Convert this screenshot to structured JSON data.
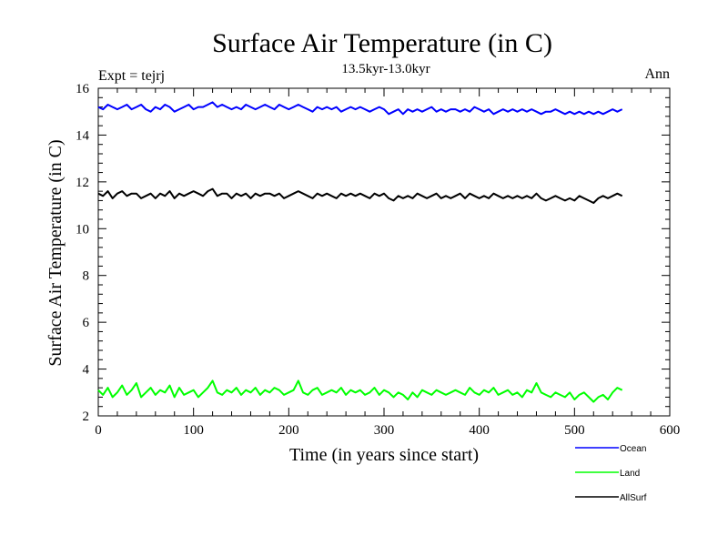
{
  "chart_data": {
    "type": "line",
    "title": "Surface Air Temperature (in C)",
    "subtitle": "13.5kyr-13.0kyr",
    "annotation_left": "Expt = tejrj",
    "annotation_right": "Ann",
    "xlabel": "Time (in years since start)",
    "ylabel": "Surface Air Temperature (in C)",
    "xlim": [
      0,
      600
    ],
    "ylim": [
      2,
      16
    ],
    "xticks": [
      0,
      100,
      200,
      300,
      400,
      500,
      600
    ],
    "yticks": [
      2,
      4,
      6,
      8,
      10,
      12,
      14,
      16
    ],
    "x_start": 0,
    "x_step": 5,
    "grid": false,
    "legend_position": "bottom-right",
    "series": [
      {
        "name": "Ocean",
        "color": "#0000ff",
        "values": [
          15.2,
          15.1,
          15.3,
          15.2,
          15.1,
          15.2,
          15.3,
          15.1,
          15.2,
          15.3,
          15.1,
          15.0,
          15.2,
          15.1,
          15.3,
          15.2,
          15.0,
          15.1,
          15.2,
          15.3,
          15.1,
          15.2,
          15.2,
          15.3,
          15.4,
          15.2,
          15.3,
          15.2,
          15.1,
          15.2,
          15.1,
          15.3,
          15.2,
          15.1,
          15.2,
          15.3,
          15.2,
          15.1,
          15.3,
          15.2,
          15.1,
          15.2,
          15.3,
          15.2,
          15.1,
          15.0,
          15.2,
          15.1,
          15.2,
          15.1,
          15.2,
          15.0,
          15.1,
          15.2,
          15.1,
          15.2,
          15.1,
          15.0,
          15.1,
          15.2,
          15.1,
          14.9,
          15.0,
          15.1,
          14.9,
          15.1,
          15.0,
          15.1,
          15.0,
          15.1,
          15.2,
          15.0,
          15.1,
          15.0,
          15.1,
          15.1,
          15.0,
          15.1,
          15.0,
          15.2,
          15.1,
          15.0,
          15.1,
          14.9,
          15.0,
          15.1,
          15.0,
          15.1,
          15.0,
          15.1,
          15.0,
          15.1,
          15.0,
          14.9,
          15.0,
          15.0,
          15.1,
          15.0,
          14.9,
          15.0,
          14.9,
          15.0,
          14.9,
          15.0,
          14.9,
          15.0,
          14.9,
          15.0,
          15.1,
          15.0,
          15.1
        ]
      },
      {
        "name": "Land",
        "color": "#00ff00",
        "values": [
          3.1,
          2.9,
          3.2,
          2.8,
          3.0,
          3.3,
          2.9,
          3.1,
          3.4,
          2.8,
          3.0,
          3.2,
          2.9,
          3.1,
          3.0,
          3.3,
          2.8,
          3.2,
          2.9,
          3.0,
          3.1,
          2.8,
          3.0,
          3.2,
          3.5,
          3.0,
          2.9,
          3.1,
          3.0,
          3.2,
          2.9,
          3.1,
          3.0,
          3.2,
          2.9,
          3.1,
          3.0,
          3.2,
          3.1,
          2.9,
          3.0,
          3.1,
          3.5,
          3.0,
          2.9,
          3.1,
          3.2,
          2.9,
          3.0,
          3.1,
          3.0,
          3.2,
          2.9,
          3.1,
          3.0,
          3.1,
          2.9,
          3.0,
          3.2,
          2.9,
          3.1,
          3.0,
          2.8,
          3.0,
          2.9,
          2.7,
          3.0,
          2.8,
          3.1,
          3.0,
          2.9,
          3.1,
          3.0,
          2.9,
          3.0,
          3.1,
          3.0,
          2.9,
          3.2,
          3.0,
          2.9,
          3.1,
          3.0,
          3.2,
          2.9,
          3.0,
          3.1,
          2.9,
          3.0,
          2.8,
          3.1,
          3.0,
          3.4,
          3.0,
          2.9,
          2.8,
          3.0,
          2.9,
          2.8,
          3.0,
          2.7,
          2.9,
          3.0,
          2.8,
          2.6,
          2.8,
          2.9,
          2.7,
          3.0,
          3.2,
          3.1
        ]
      },
      {
        "name": "AllSurf",
        "color": "#000000",
        "values": [
          11.5,
          11.4,
          11.6,
          11.3,
          11.5,
          11.6,
          11.4,
          11.5,
          11.5,
          11.3,
          11.4,
          11.5,
          11.3,
          11.5,
          11.4,
          11.6,
          11.3,
          11.5,
          11.4,
          11.5,
          11.6,
          11.5,
          11.4,
          11.6,
          11.7,
          11.4,
          11.5,
          11.5,
          11.3,
          11.5,
          11.4,
          11.5,
          11.3,
          11.5,
          11.4,
          11.5,
          11.5,
          11.4,
          11.5,
          11.3,
          11.4,
          11.5,
          11.6,
          11.5,
          11.4,
          11.3,
          11.5,
          11.4,
          11.5,
          11.4,
          11.3,
          11.5,
          11.4,
          11.5,
          11.4,
          11.5,
          11.4,
          11.3,
          11.5,
          11.4,
          11.5,
          11.3,
          11.2,
          11.4,
          11.3,
          11.4,
          11.3,
          11.5,
          11.4,
          11.3,
          11.4,
          11.5,
          11.3,
          11.4,
          11.3,
          11.4,
          11.5,
          11.3,
          11.5,
          11.4,
          11.3,
          11.4,
          11.3,
          11.5,
          11.4,
          11.3,
          11.4,
          11.3,
          11.4,
          11.3,
          11.4,
          11.3,
          11.5,
          11.3,
          11.2,
          11.3,
          11.4,
          11.3,
          11.2,
          11.3,
          11.2,
          11.4,
          11.3,
          11.2,
          11.1,
          11.3,
          11.4,
          11.3,
          11.4,
          11.5,
          11.4
        ]
      }
    ]
  }
}
